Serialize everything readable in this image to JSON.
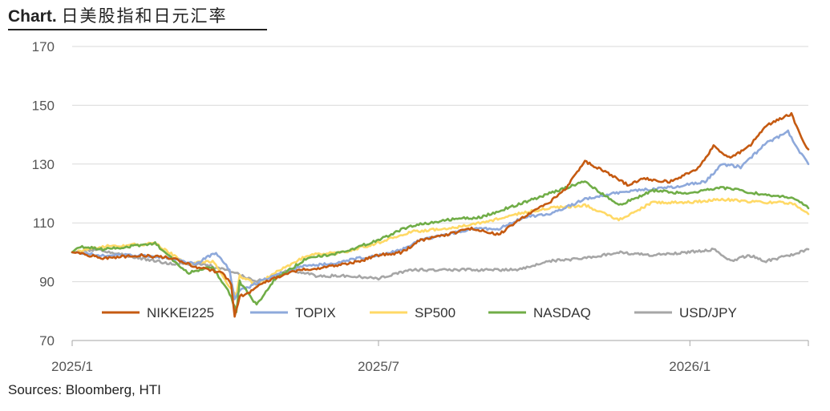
{
  "header": {
    "label": "Chart.",
    "text": "日美股指和日元汇率"
  },
  "source": "Sources: Bloomberg, HTI",
  "chart_data": {
    "type": "line",
    "title": "日美股指和日元汇率",
    "ylim": [
      70,
      170
    ],
    "yticks": [
      "70",
      "90",
      "110",
      "130",
      "150",
      "170"
    ],
    "xtick_labels": [
      {
        "label": "2025/1",
        "date": "2025-01-01"
      },
      {
        "label": "2025/7",
        "date": "2025-07-01"
      },
      {
        "label": "2026/1",
        "date": "2026-01-01"
      }
    ],
    "x_range": [
      "2025-01-01",
      "2026-03-12"
    ],
    "grid": "horizontal",
    "legend_position": "bottom-inside",
    "series": [
      {
        "name": "NIKKEI225",
        "color": "#C55A11",
        "points": [
          [
            "2025-01-01",
            100
          ],
          [
            "2025-01-20",
            98
          ],
          [
            "2025-02-10",
            99
          ],
          [
            "2025-03-01",
            98
          ],
          [
            "2025-03-15",
            95
          ],
          [
            "2025-03-31",
            93
          ],
          [
            "2025-04-05",
            89
          ],
          [
            "2025-04-07",
            78
          ],
          [
            "2025-04-10",
            85
          ],
          [
            "2025-04-15",
            86
          ],
          [
            "2025-04-25",
            90
          ],
          [
            "2025-05-15",
            94
          ],
          [
            "2025-06-01",
            95
          ],
          [
            "2025-06-20",
            97
          ],
          [
            "2025-07-01",
            99
          ],
          [
            "2025-07-15",
            100
          ],
          [
            "2025-07-25",
            104
          ],
          [
            "2025-08-10",
            106
          ],
          [
            "2025-08-25",
            108
          ],
          [
            "2025-09-10",
            106
          ],
          [
            "2025-09-25",
            112
          ],
          [
            "2025-10-10",
            117
          ],
          [
            "2025-10-20",
            122
          ],
          [
            "2025-10-31",
            131
          ],
          [
            "2025-11-10",
            128
          ],
          [
            "2025-11-25",
            123
          ],
          [
            "2025-12-05",
            125
          ],
          [
            "2025-12-20",
            124
          ],
          [
            "2026-01-05",
            128
          ],
          [
            "2026-01-15",
            136
          ],
          [
            "2026-01-25",
            132
          ],
          [
            "2026-02-05",
            136
          ],
          [
            "2026-02-15",
            143
          ],
          [
            "2026-02-25",
            146
          ],
          [
            "2026-03-02",
            147
          ],
          [
            "2026-03-07",
            140
          ],
          [
            "2026-03-12",
            135
          ]
        ]
      },
      {
        "name": "TOPIX",
        "color": "#8EA9DB",
        "points": [
          [
            "2025-01-01",
            100
          ],
          [
            "2025-01-20",
            99
          ],
          [
            "2025-02-10",
            99
          ],
          [
            "2025-03-01",
            98
          ],
          [
            "2025-03-15",
            96
          ],
          [
            "2025-03-27",
            100
          ],
          [
            "2025-04-04",
            94
          ],
          [
            "2025-04-07",
            84
          ],
          [
            "2025-04-10",
            87
          ],
          [
            "2025-04-15",
            88
          ],
          [
            "2025-04-25",
            91
          ],
          [
            "2025-05-15",
            95
          ],
          [
            "2025-06-01",
            96
          ],
          [
            "2025-06-20",
            98
          ],
          [
            "2025-07-01",
            99
          ],
          [
            "2025-07-15",
            101
          ],
          [
            "2025-07-25",
            104
          ],
          [
            "2025-08-10",
            106
          ],
          [
            "2025-08-25",
            108
          ],
          [
            "2025-09-10",
            108
          ],
          [
            "2025-09-25",
            112
          ],
          [
            "2025-10-10",
            113
          ],
          [
            "2025-10-31",
            118
          ],
          [
            "2025-11-15",
            120
          ],
          [
            "2025-12-01",
            121
          ],
          [
            "2025-12-20",
            122
          ],
          [
            "2026-01-10",
            124
          ],
          [
            "2026-01-20",
            130
          ],
          [
            "2026-01-31",
            129
          ],
          [
            "2026-02-15",
            137
          ],
          [
            "2026-02-28",
            141
          ],
          [
            "2026-03-06",
            135
          ],
          [
            "2026-03-12",
            130
          ]
        ]
      },
      {
        "name": "SP500",
        "color": "#FFD966",
        "points": [
          [
            "2025-01-01",
            100
          ],
          [
            "2025-01-20",
            102
          ],
          [
            "2025-02-19",
            103
          ],
          [
            "2025-03-10",
            96
          ],
          [
            "2025-03-25",
            97
          ],
          [
            "2025-04-08",
            85
          ],
          [
            "2025-04-10",
            92
          ],
          [
            "2025-04-20",
            89
          ],
          [
            "2025-05-01",
            93
          ],
          [
            "2025-05-20",
            99
          ],
          [
            "2025-06-10",
            100
          ],
          [
            "2025-06-30",
            103
          ],
          [
            "2025-07-20",
            107
          ],
          [
            "2025-08-10",
            108
          ],
          [
            "2025-08-31",
            110
          ],
          [
            "2025-09-20",
            113
          ],
          [
            "2025-10-10",
            115
          ],
          [
            "2025-10-31",
            116
          ],
          [
            "2025-11-20",
            111
          ],
          [
            "2025-12-10",
            117
          ],
          [
            "2025-12-31",
            117
          ],
          [
            "2026-01-20",
            118
          ],
          [
            "2026-02-10",
            117
          ],
          [
            "2026-02-25",
            117
          ],
          [
            "2026-03-05",
            116
          ],
          [
            "2026-03-12",
            113
          ]
        ]
      },
      {
        "name": "NASDAQ",
        "color": "#70AD47",
        "points": [
          [
            "2025-01-01",
            100
          ],
          [
            "2025-01-05",
            102
          ],
          [
            "2025-01-20",
            101
          ],
          [
            "2025-02-19",
            103
          ],
          [
            "2025-03-10",
            93
          ],
          [
            "2025-03-25",
            95
          ],
          [
            "2025-04-04",
            86
          ],
          [
            "2025-04-08",
            80
          ],
          [
            "2025-04-10",
            90
          ],
          [
            "2025-04-20",
            82
          ],
          [
            "2025-05-01",
            91
          ],
          [
            "2025-05-20",
            98
          ],
          [
            "2025-06-10",
            100
          ],
          [
            "2025-06-30",
            104
          ],
          [
            "2025-07-20",
            109
          ],
          [
            "2025-08-10",
            111
          ],
          [
            "2025-08-31",
            112
          ],
          [
            "2025-09-20",
            116
          ],
          [
            "2025-10-10",
            120
          ],
          [
            "2025-10-31",
            124
          ],
          [
            "2025-11-20",
            116
          ],
          [
            "2025-12-10",
            121
          ],
          [
            "2025-12-31",
            120
          ],
          [
            "2026-01-20",
            122
          ],
          [
            "2026-02-10",
            120
          ],
          [
            "2026-02-25",
            119
          ],
          [
            "2026-03-05",
            118
          ],
          [
            "2026-03-12",
            115
          ]
        ]
      },
      {
        "name": "USD/JPY",
        "color": "#A6A6A6",
        "points": [
          [
            "2025-01-01",
            100
          ],
          [
            "2025-01-15",
            101
          ],
          [
            "2025-02-10",
            98
          ],
          [
            "2025-03-01",
            96
          ],
          [
            "2025-03-20",
            96
          ],
          [
            "2025-04-07",
            93
          ],
          [
            "2025-04-20",
            90
          ],
          [
            "2025-05-10",
            94
          ],
          [
            "2025-05-25",
            92
          ],
          [
            "2025-06-15",
            92
          ],
          [
            "2025-07-01",
            91
          ],
          [
            "2025-07-20",
            94
          ],
          [
            "2025-08-10",
            94
          ],
          [
            "2025-08-31",
            94
          ],
          [
            "2025-09-20",
            94
          ],
          [
            "2025-10-10",
            97
          ],
          [
            "2025-10-31",
            98
          ],
          [
            "2025-11-20",
            100
          ],
          [
            "2025-12-10",
            99
          ],
          [
            "2025-12-31",
            100
          ],
          [
            "2026-01-15",
            101
          ],
          [
            "2026-01-25",
            97
          ],
          [
            "2026-02-05",
            99
          ],
          [
            "2026-02-15",
            97
          ],
          [
            "2026-03-01",
            99
          ],
          [
            "2026-03-12",
            101
          ]
        ]
      }
    ]
  }
}
